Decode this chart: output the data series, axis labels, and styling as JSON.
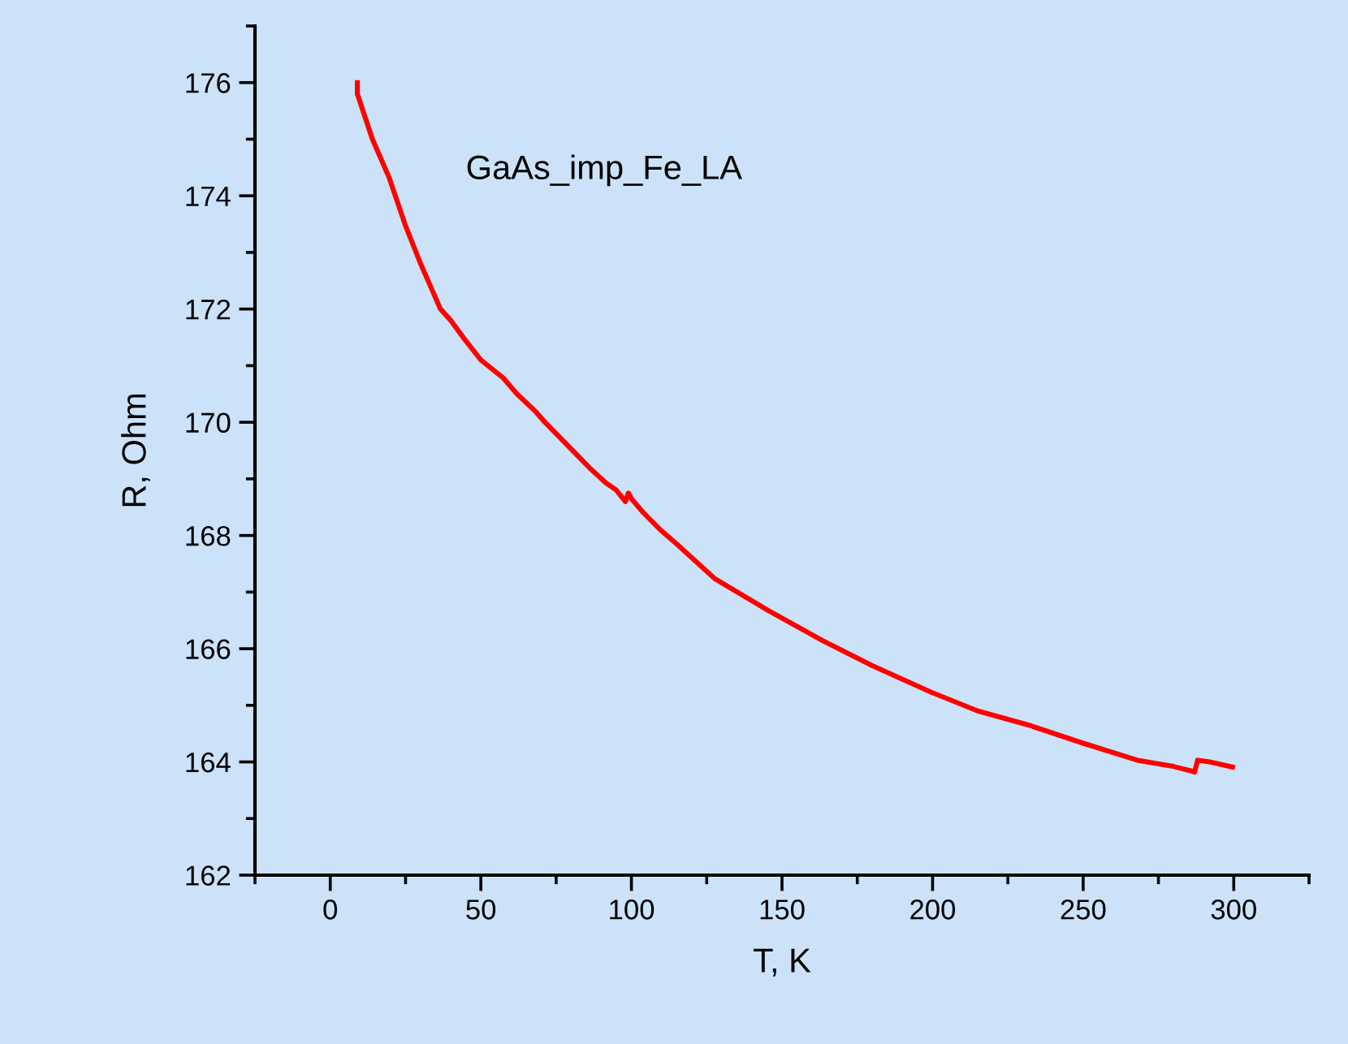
{
  "chart_data": {
    "type": "line",
    "xlabel": "T, K",
    "ylabel": "R, Ohm",
    "annotations": [
      "GaAs_imp_Fe_LA"
    ],
    "x": [
      9,
      9,
      14,
      19.5,
      25,
      30,
      36.6,
      40,
      44.7,
      50,
      57.3,
      62,
      68,
      71.3,
      80.5,
      86,
      91.5,
      95,
      98,
      99,
      100,
      104,
      109.6,
      115,
      127.6,
      145.6,
      163.6,
      180,
      199.6,
      215,
      232,
      250,
      268,
      280,
      286,
      287,
      288,
      292,
      299.6
    ],
    "series": [
      {
        "color": "#ff0000",
        "values": [
          176.0,
          175.8,
          175.0,
          174.33,
          173.47,
          172.8,
          172.0,
          171.8,
          171.46,
          171.1,
          170.79,
          170.5,
          170.2,
          170.0,
          169.5,
          169.2,
          168.93,
          168.8,
          168.6,
          168.75,
          168.65,
          168.4,
          168.1,
          167.85,
          167.24,
          166.67,
          166.14,
          165.7,
          165.23,
          164.9,
          164.65,
          164.33,
          164.03,
          163.92,
          163.84,
          163.82,
          164.03,
          164.0,
          163.91
        ]
      }
    ],
    "xlim": [
      -25,
      325
    ],
    "xticks": [
      0,
      50,
      100,
      150,
      200,
      250,
      300
    ],
    "ylim": [
      162,
      177
    ],
    "yticks": [
      162,
      164,
      166,
      168,
      170,
      172,
      174,
      176
    ],
    "grid": false,
    "legend": false,
    "marker": "none",
    "line_style": "solid"
  }
}
